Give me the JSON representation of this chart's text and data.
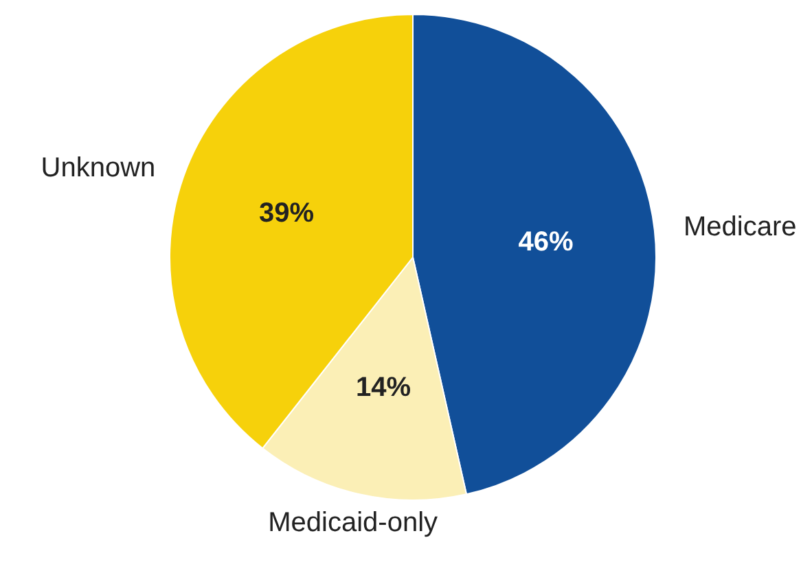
{
  "chart_data": {
    "type": "pie",
    "categories": [
      "Medicare",
      "Medicaid-only",
      "Unknown"
    ],
    "values": [
      46,
      14,
      39
    ],
    "colors": [
      "#114f99",
      "#fbefb6",
      "#f6d10b"
    ],
    "value_labels": [
      "46%",
      "14%",
      "39%"
    ]
  }
}
